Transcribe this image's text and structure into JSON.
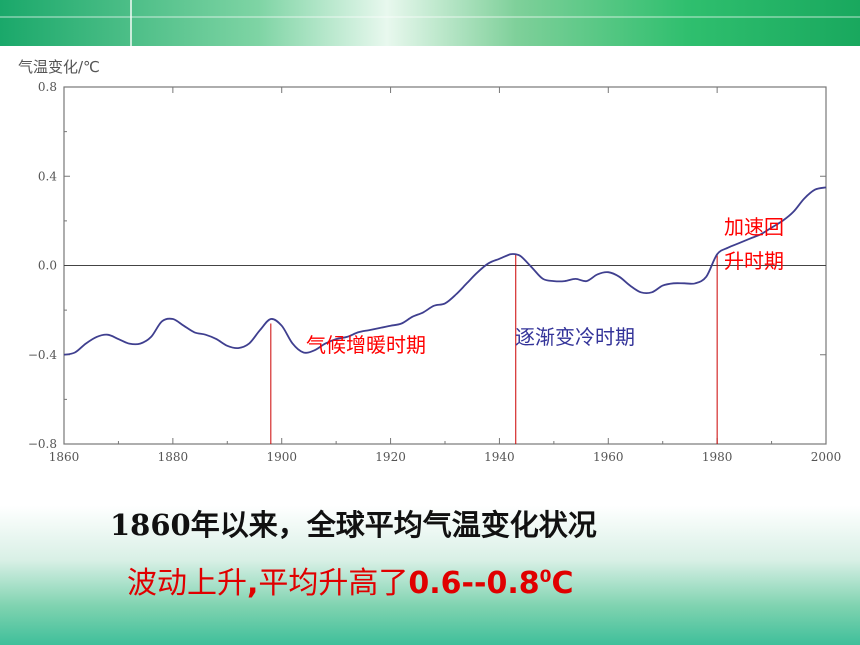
{
  "chart_data": {
    "type": "line",
    "ylabel": "气温变化/℃",
    "xlim": [
      1860,
      2000
    ],
    "ylim": [
      -0.8,
      0.8
    ],
    "x_ticks": [
      1860,
      1880,
      1900,
      1920,
      1940,
      1960,
      1980,
      2000
    ],
    "y_ticks": [
      {
        "v": 0.8,
        "label": "0.8"
      },
      {
        "v": 0.4,
        "label": "0.4"
      },
      {
        "v": 0.0,
        "label": "0.0"
      },
      {
        "v": -0.4,
        "label": "−0.4"
      },
      {
        "v": -0.8,
        "label": "−0.8"
      }
    ],
    "reference_line_y": 0,
    "line_color": "#3f3f8f",
    "x": [
      1860,
      1862,
      1864,
      1866,
      1868,
      1870,
      1872,
      1874,
      1876,
      1878,
      1880,
      1882,
      1884,
      1886,
      1888,
      1890,
      1892,
      1894,
      1896,
      1898,
      1900,
      1902,
      1904,
      1906,
      1908,
      1910,
      1912,
      1914,
      1916,
      1918,
      1920,
      1922,
      1924,
      1926,
      1928,
      1930,
      1932,
      1934,
      1936,
      1938,
      1940,
      1942,
      1943,
      1944,
      1946,
      1948,
      1950,
      1952,
      1954,
      1956,
      1958,
      1960,
      1962,
      1964,
      1966,
      1968,
      1970,
      1972,
      1974,
      1976,
      1978,
      1980,
      1982,
      1984,
      1986,
      1988,
      1990,
      1992,
      1994,
      1996,
      1998,
      2000
    ],
    "values": [
      -0.4,
      -0.39,
      -0.35,
      -0.32,
      -0.31,
      -0.33,
      -0.35,
      -0.35,
      -0.32,
      -0.25,
      -0.24,
      -0.27,
      -0.3,
      -0.31,
      -0.33,
      -0.36,
      -0.37,
      -0.35,
      -0.29,
      -0.24,
      -0.27,
      -0.35,
      -0.39,
      -0.38,
      -0.35,
      -0.33,
      -0.32,
      -0.3,
      -0.29,
      -0.28,
      -0.27,
      -0.26,
      -0.23,
      -0.21,
      -0.18,
      -0.17,
      -0.13,
      -0.08,
      -0.03,
      0.01,
      0.03,
      0.05,
      0.05,
      0.04,
      -0.01,
      -0.06,
      -0.07,
      -0.07,
      -0.06,
      -0.07,
      -0.04,
      -0.03,
      -0.05,
      -0.09,
      -0.12,
      -0.12,
      -0.09,
      -0.08,
      -0.08,
      -0.08,
      -0.05,
      0.05,
      0.08,
      0.1,
      0.12,
      0.14,
      0.17,
      0.2,
      0.24,
      0.3,
      0.34,
      0.35
    ],
    "markers": [
      {
        "x": 1898,
        "y_from": -0.8,
        "y_to": -0.26,
        "color": "#cc0000"
      },
      {
        "x": 1943,
        "y_from": -0.8,
        "y_to": 0.05,
        "color": "#cc0000"
      },
      {
        "x": 1980,
        "y_from": -0.8,
        "y_to": 0.05,
        "color": "#cc0000"
      }
    ],
    "annotations": [
      {
        "lines": [
          "气候增暖时期"
        ],
        "color": "#ff0000"
      },
      {
        "lines": [
          "逐渐变冷时期"
        ],
        "color": "#333399"
      },
      {
        "lines": [
          "加速回",
          "升时期"
        ],
        "color": "#ff0000"
      }
    ]
  },
  "captions": {
    "line1": "1860年以来，全球平均气温变化状况",
    "line2_prefix": "波动上升",
    "line2_mid": ",",
    "line2_text": "平均升高了",
    "line2_value": "0.6--0.8",
    "line2_deg": "0",
    "line2_unit": "C"
  }
}
